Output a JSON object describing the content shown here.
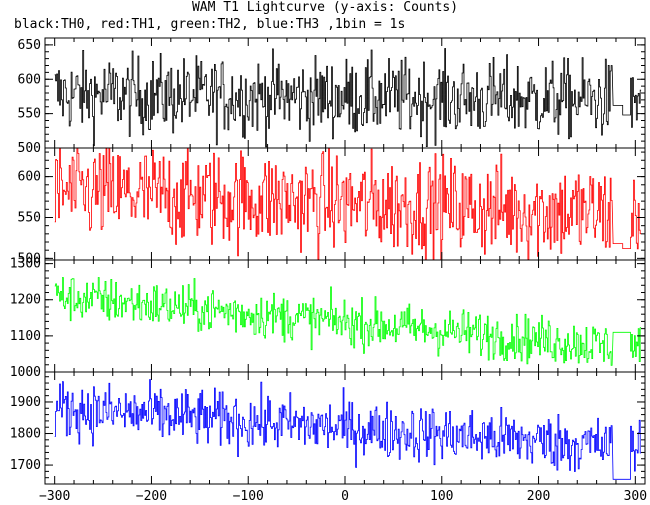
{
  "chart_data": {
    "type": "line",
    "title": "WAM T1 Lightcurve (y-axis: Counts)",
    "subtitle": "black:TH0, red:TH1, green:TH2, blue:TH3 ,1bin = 1s",
    "xlim": [
      -310,
      310
    ],
    "x_ticks": [
      -300,
      -200,
      -100,
      0,
      100,
      200,
      300
    ],
    "x_tick_labels": [
      "−300",
      "−200",
      "−100",
      "0",
      "100",
      "200",
      "300"
    ],
    "grid": false,
    "data_start": -300,
    "data_gap": [
      275,
      295
    ],
    "data_end": 305,
    "series": [
      {
        "name": "TH0",
        "color": "#000000",
        "ylim": [
          500,
          660
        ],
        "yticks": [
          500,
          550,
          600,
          650
        ],
        "mean_start": 578,
        "mean_end": 570,
        "spread": 28,
        "gap_level": 562,
        "gap_level_2": 548
      },
      {
        "name": "TH1",
        "color": "#ff0000",
        "ylim": [
          498,
          635
        ],
        "yticks": [
          500,
          550,
          600
        ],
        "mean_start": 582,
        "mean_end": 555,
        "spread": 30,
        "gap_level": 518,
        "gap_level_2": 512
      },
      {
        "name": "TH2",
        "color": "#00ff00",
        "ylim": [
          1000,
          1310
        ],
        "yticks": [
          1000,
          1100,
          1200,
          1300
        ],
        "mean_start": 1210,
        "mean_end": 1072,
        "spread": 32,
        "gap_level": 1110,
        "gap_level_2": 1110
      },
      {
        "name": "TH3",
        "color": "#0000ff",
        "ylim": [
          1640,
          1995
        ],
        "yticks": [
          1700,
          1800,
          1900
        ],
        "mean_start": 1880,
        "mean_end": 1760,
        "spread": 45,
        "gap_level": 1655,
        "gap_level_2": 1655
      }
    ]
  }
}
